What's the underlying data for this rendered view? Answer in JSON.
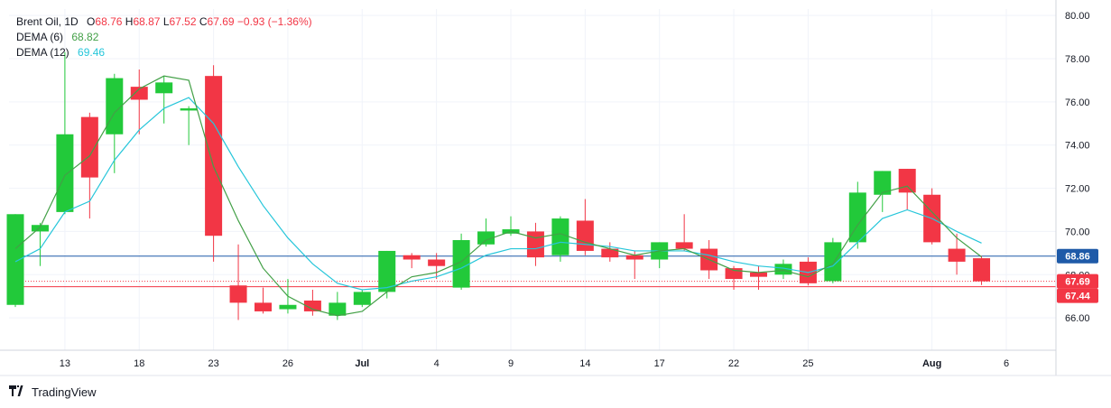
{
  "legend": {
    "symbol": "Brent Oil, 1D",
    "open_key": "O",
    "open": "68.76",
    "high_key": "H",
    "high": "68.87",
    "low_key": "L",
    "low": "67.52",
    "close_key": "C",
    "close": "67.69",
    "change": "−0.93 (−1.36%)",
    "dema6_label": "DEMA (6)",
    "dema6_value": "68.82",
    "dema12_label": "DEMA (12)",
    "dema12_value": "69.46"
  },
  "brand": {
    "logo_glyph": "𝟭𝟳",
    "name": "TradingView"
  },
  "colors": {
    "up": "#22c93a",
    "down": "#f23645",
    "dema6": "#43a047",
    "dema12": "#26c6da",
    "line_blue": "#1e5aa8",
    "line_red": "#f23645"
  },
  "chart_data": {
    "type": "candlestick",
    "ylim": [
      64.5,
      80.3
    ],
    "y_ticks": [
      66,
      68,
      70,
      72,
      74,
      76,
      78,
      80
    ],
    "y_tick_labels": [
      "66.00",
      "68.00",
      "70.00",
      "72.00",
      "74.00",
      "76.00",
      "78.00",
      "80.00"
    ],
    "x_tick_labels": [
      {
        "label": "13",
        "index": 2
      },
      {
        "label": "18",
        "index": 5
      },
      {
        "label": "23",
        "index": 8
      },
      {
        "label": "26",
        "index": 11
      },
      {
        "label": "Jul",
        "index": 14
      },
      {
        "label": "4",
        "index": 17
      },
      {
        "label": "9",
        "index": 20
      },
      {
        "label": "14",
        "index": 23
      },
      {
        "label": "17",
        "index": 26
      },
      {
        "label": "22",
        "index": 29
      },
      {
        "label": "25",
        "index": 32
      },
      {
        "label": "Aug",
        "index": 37
      },
      {
        "label": "6",
        "index": 40
      }
    ],
    "candles": [
      {
        "o": 66.6,
        "h": 70.8,
        "l": 66.5,
        "c": 70.8
      },
      {
        "o": 70.0,
        "h": 70.4,
        "l": 68.4,
        "c": 70.3
      },
      {
        "o": 70.9,
        "h": 78.3,
        "l": 70.8,
        "c": 74.5
      },
      {
        "o": 75.3,
        "h": 75.5,
        "l": 70.6,
        "c": 72.5
      },
      {
        "o": 74.5,
        "h": 77.3,
        "l": 72.7,
        "c": 77.1
      },
      {
        "o": 76.7,
        "h": 77.5,
        "l": 74.5,
        "c": 76.1
      },
      {
        "o": 76.4,
        "h": 77.2,
        "l": 75.0,
        "c": 76.9
      },
      {
        "o": 75.6,
        "h": 75.8,
        "l": 74.0,
        "c": 75.7
      },
      {
        "o": 77.2,
        "h": 77.7,
        "l": 68.6,
        "c": 69.8
      },
      {
        "o": 67.5,
        "h": 69.4,
        "l": 65.9,
        "c": 66.7
      },
      {
        "o": 66.7,
        "h": 67.4,
        "l": 66.2,
        "c": 66.3
      },
      {
        "o": 66.4,
        "h": 67.8,
        "l": 66.2,
        "c": 66.6
      },
      {
        "o": 66.8,
        "h": 67.3,
        "l": 66.1,
        "c": 66.3
      },
      {
        "o": 66.1,
        "h": 67.2,
        "l": 65.9,
        "c": 66.7
      },
      {
        "o": 66.6,
        "h": 67.3,
        "l": 66.5,
        "c": 67.2
      },
      {
        "o": 67.2,
        "h": 69.1,
        "l": 66.9,
        "c": 69.1
      },
      {
        "o": 68.9,
        "h": 69.0,
        "l": 68.3,
        "c": 68.7
      },
      {
        "o": 68.7,
        "h": 69.0,
        "l": 67.8,
        "c": 68.4
      },
      {
        "o": 67.4,
        "h": 69.9,
        "l": 67.3,
        "c": 69.6
      },
      {
        "o": 69.4,
        "h": 70.6,
        "l": 69.3,
        "c": 70.0
      },
      {
        "o": 69.9,
        "h": 70.7,
        "l": 69.8,
        "c": 70.1
      },
      {
        "o": 70.0,
        "h": 70.4,
        "l": 68.4,
        "c": 68.8
      },
      {
        "o": 68.9,
        "h": 70.7,
        "l": 68.6,
        "c": 70.6
      },
      {
        "o": 70.5,
        "h": 71.5,
        "l": 68.9,
        "c": 69.1
      },
      {
        "o": 69.2,
        "h": 69.5,
        "l": 68.6,
        "c": 68.8
      },
      {
        "o": 68.9,
        "h": 69.1,
        "l": 67.8,
        "c": 68.7
      },
      {
        "o": 68.7,
        "h": 69.5,
        "l": 68.3,
        "c": 69.5
      },
      {
        "o": 69.5,
        "h": 70.8,
        "l": 69.1,
        "c": 69.2
      },
      {
        "o": 69.2,
        "h": 69.6,
        "l": 67.8,
        "c": 68.2
      },
      {
        "o": 68.3,
        "h": 68.4,
        "l": 67.3,
        "c": 67.8
      },
      {
        "o": 68.1,
        "h": 68.4,
        "l": 67.3,
        "c": 67.9
      },
      {
        "o": 68.0,
        "h": 68.7,
        "l": 67.8,
        "c": 68.5
      },
      {
        "o": 68.6,
        "h": 68.8,
        "l": 67.5,
        "c": 67.6
      },
      {
        "o": 67.7,
        "h": 69.7,
        "l": 67.6,
        "c": 69.5
      },
      {
        "o": 69.5,
        "h": 72.3,
        "l": 69.2,
        "c": 71.8
      },
      {
        "o": 71.7,
        "h": 72.8,
        "l": 70.9,
        "c": 72.8
      },
      {
        "o": 72.9,
        "h": 72.9,
        "l": 71.0,
        "c": 71.8
      },
      {
        "o": 71.7,
        "h": 72.0,
        "l": 69.4,
        "c": 69.5
      },
      {
        "o": 69.2,
        "h": 69.9,
        "l": 68.0,
        "c": 68.6
      },
      {
        "o": 68.76,
        "h": 68.87,
        "l": 67.52,
        "c": 67.69
      }
    ],
    "dema6": [
      69.2,
      70.2,
      72.6,
      73.5,
      75.5,
      76.6,
      77.2,
      77.0,
      73.0,
      70.5,
      68.3,
      67.0,
      66.4,
      66.1,
      66.3,
      67.2,
      67.9,
      68.1,
      68.6,
      69.6,
      70.0,
      69.7,
      69.9,
      69.5,
      69.2,
      68.9,
      69.1,
      69.2,
      68.7,
      68.2,
      68.1,
      68.2,
      67.9,
      68.5,
      70.3,
      71.8,
      72.1,
      70.9,
      69.7,
      68.82
    ],
    "dema12": [
      68.6,
      69.2,
      70.9,
      71.4,
      73.3,
      74.7,
      75.7,
      76.2,
      75.0,
      73.0,
      71.2,
      69.7,
      68.5,
      67.6,
      67.3,
      67.4,
      67.7,
      67.9,
      68.3,
      68.9,
      69.2,
      69.2,
      69.5,
      69.4,
      69.3,
      69.1,
      69.1,
      69.1,
      68.9,
      68.6,
      68.4,
      68.3,
      68.1,
      68.4,
      69.5,
      70.6,
      71.0,
      70.6,
      70.0,
      69.46
    ],
    "price_lines": [
      {
        "value": 68.86,
        "label": "68.86",
        "style": "solid",
        "color_key": "line_blue"
      },
      {
        "value": 67.69,
        "label": "67.69",
        "style": "dotted",
        "color_key": "line_red"
      },
      {
        "value": 67.44,
        "label": "67.44",
        "style": "solid",
        "color_key": "line_red"
      }
    ]
  }
}
